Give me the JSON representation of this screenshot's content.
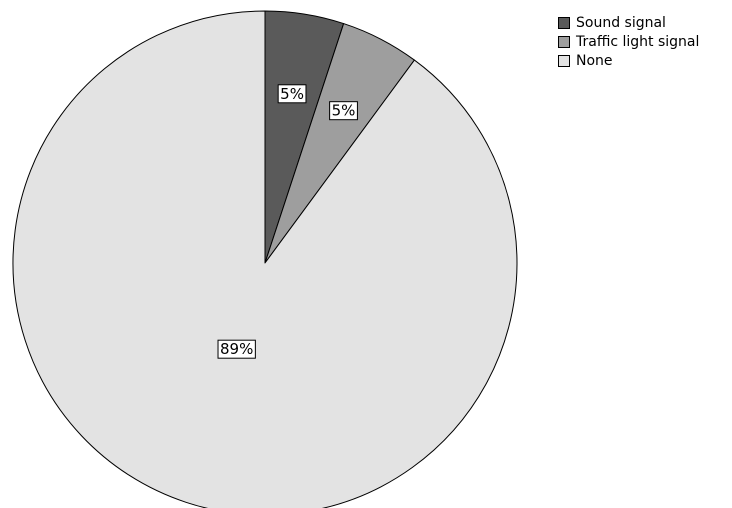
{
  "chart_data": {
    "type": "pie",
    "title": "",
    "categories": [
      "Sound signal",
      "Traffic light signal",
      "None"
    ],
    "values": [
      5,
      5,
      89
    ],
    "data_labels": [
      "5%",
      "5%",
      "89%"
    ],
    "colors": [
      "#5a5a5a",
      "#9e9e9e",
      "#e3e3e3"
    ],
    "legend_position": "top-right",
    "start_angle": "12 o'clock",
    "direction": "clockwise"
  }
}
